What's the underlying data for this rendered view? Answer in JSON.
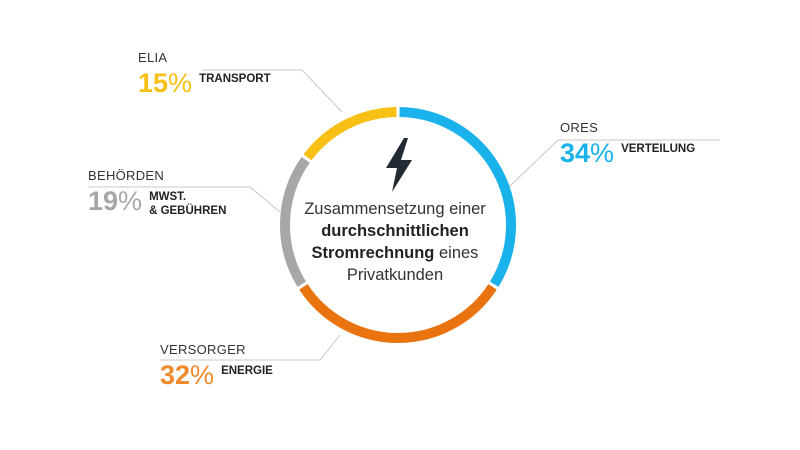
{
  "chart_data": {
    "type": "pie",
    "title": "Zusammensetzung einer durchschnittlichen Stromrechnung eines Privatkunden",
    "title_parts": {
      "pre": "Zusammensetzung einer",
      "bold1": "durchschnittlichen",
      "bold2": "Stromrechnung",
      "post": "eines",
      "last": "Privatkunden"
    },
    "slices": [
      {
        "name": "ORES",
        "label": "VERTEILUNG",
        "value": 34,
        "color": "#1ab2ea"
      },
      {
        "name": "VERSORGER",
        "label": "ENERGIE",
        "value": 32,
        "color": "#e8730f"
      },
      {
        "name": "BEHÖRDEN",
        "label_lines": [
          "MWST.",
          "& GEBÜHREN"
        ],
        "value": 19,
        "color": "#a7a7a7"
      },
      {
        "name": "ELIA",
        "label": "TRANSPORT",
        "value": 15,
        "color": "#f8c014"
      }
    ],
    "unit": "%"
  },
  "icons": {
    "center": "lightning-bolt-icon"
  },
  "colors": {
    "callout_line": "#c8c8c8",
    "text": "#333333",
    "bolt": "#222a33"
  }
}
